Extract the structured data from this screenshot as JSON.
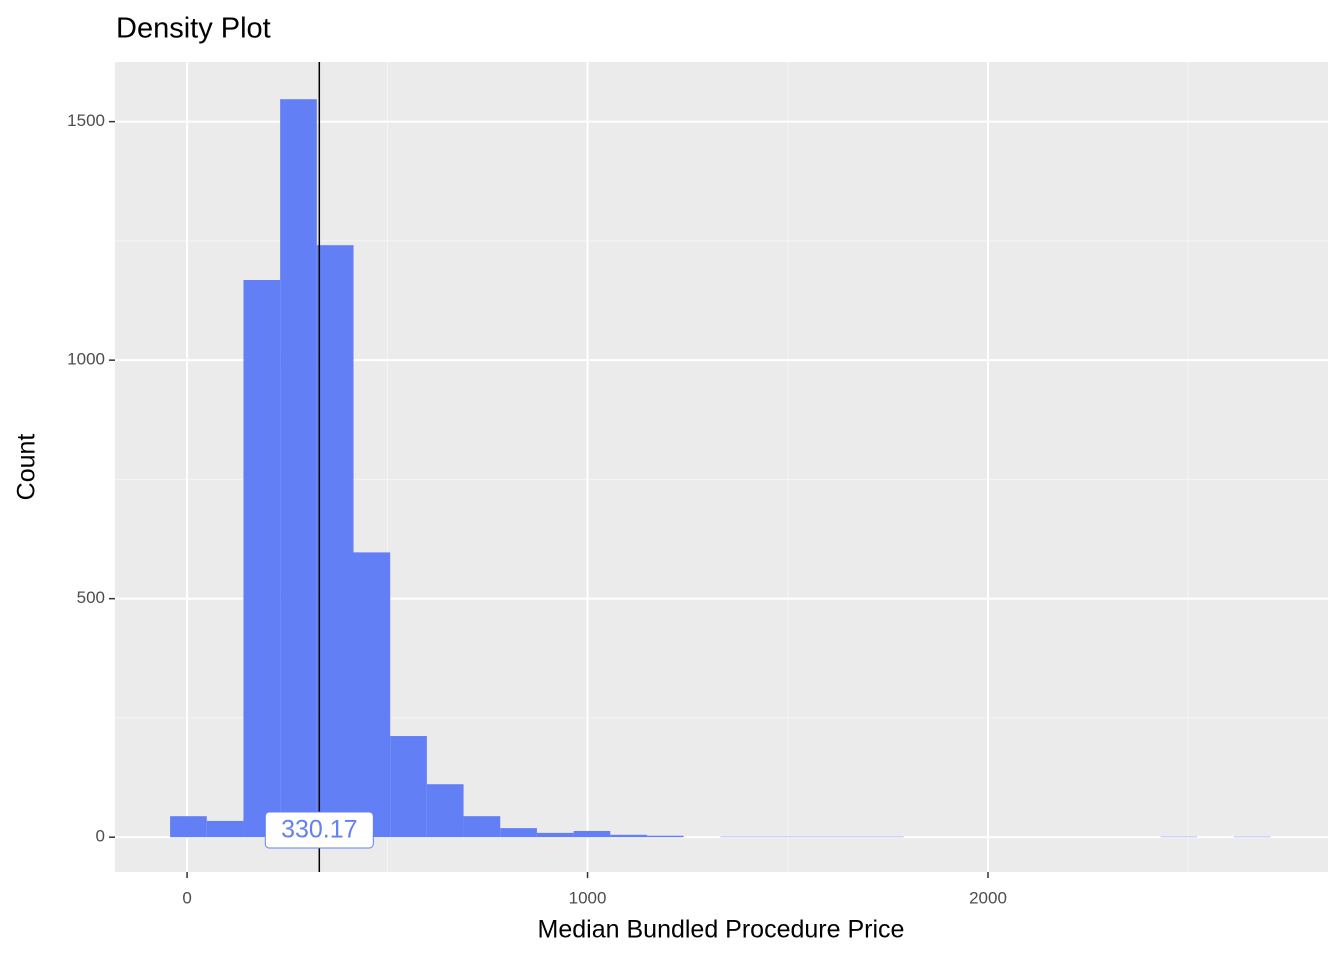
{
  "chart_data": {
    "type": "histogram",
    "title": "Density Plot",
    "x_label": "Median Bundled Procedure Price",
    "y_label": "Count",
    "bins": [
      -42.4,
      49.2,
      140.8,
      232.4,
      324.0,
      415.6,
      507.2,
      598.8,
      690.4,
      782.0,
      873.6,
      965.2,
      1056.8,
      1148.4,
      1240.0,
      1331.6,
      1423.2,
      1514.8,
      1606.4,
      1698.0,
      1789.6,
      1881.2,
      1972.8,
      2064.4,
      2156.0,
      2247.6,
      2339.2,
      2430.8,
      2522.4,
      2614.0,
      2705.6
    ],
    "values": [
      44,
      34,
      1168,
      1547,
      1241,
      597,
      212,
      111,
      44,
      19,
      9,
      13,
      5,
      3,
      0,
      1,
      1,
      1,
      1,
      1,
      0,
      0,
      0,
      0,
      0,
      0,
      0,
      1,
      0,
      1
    ],
    "color": "#637ff6",
    "vline": 330.17,
    "xlim": [
      -180,
      2849
    ],
    "ylim": [
      -73,
      1625
    ],
    "xticks": [
      0,
      1000,
      2000
    ],
    "yticks": [
      0,
      500,
      1000,
      1500
    ],
    "grid": true
  }
}
